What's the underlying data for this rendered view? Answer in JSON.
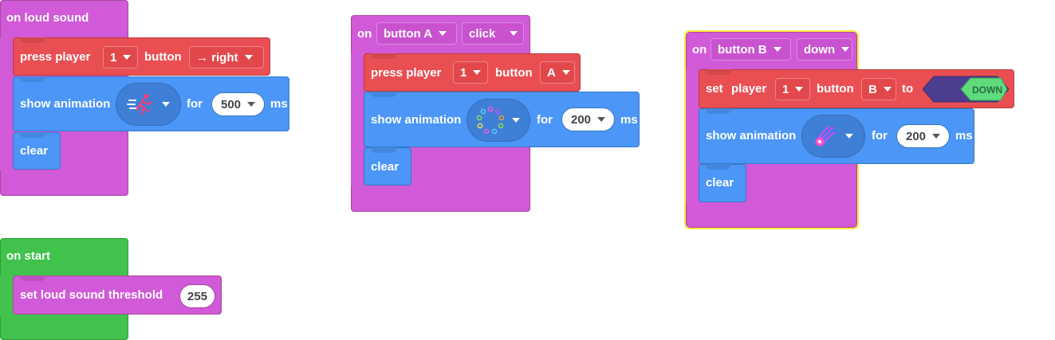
{
  "blocks": {
    "loud_sound": {
      "header": "on loud sound",
      "press": {
        "label": "press player",
        "player": "1",
        "button_label": "button",
        "button_value": "→ right"
      },
      "show_animation": {
        "label": "show animation",
        "icon": "running-person-icon",
        "for_label": "for",
        "ms_value": "500",
        "ms_label": "ms"
      },
      "clear_label": "clear"
    },
    "on_start": {
      "header": "on start",
      "threshold": {
        "label": "set loud sound threshold",
        "value": "255"
      }
    },
    "button_a": {
      "on_label": "on",
      "button_select": "button A",
      "event_select": "click",
      "press": {
        "label": "press player",
        "player": "1",
        "button_label": "button",
        "button_value": "A"
      },
      "show_animation": {
        "label": "show animation",
        "icon": "sparkle-ring-icon",
        "for_label": "for",
        "ms_value": "200",
        "ms_label": "ms"
      },
      "clear_label": "clear"
    },
    "button_b": {
      "on_label": "on",
      "button_select": "button B",
      "event_select": "down",
      "set": {
        "label_set": "set",
        "label_player": "player",
        "player": "1",
        "button_label": "button",
        "button_value": "B",
        "to_label": "to",
        "state_value": "DOWN"
      },
      "show_animation": {
        "label": "show animation",
        "icon": "comet-icon",
        "for_label": "for",
        "ms_value": "200",
        "ms_label": "ms"
      },
      "clear_label": "clear"
    }
  },
  "colors": {
    "event": "#d15ad8",
    "start": "#41c24c",
    "controller": "#e94f52",
    "light": "#4b96f6",
    "highlight": "#ffeb3b"
  }
}
